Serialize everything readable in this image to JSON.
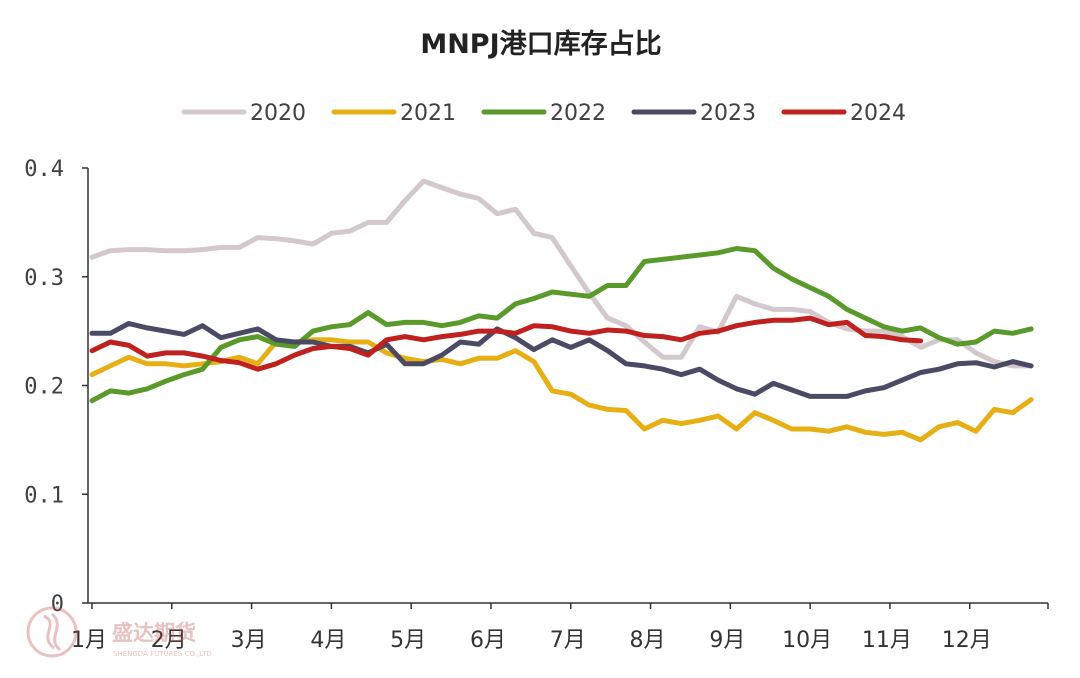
{
  "chart_data": {
    "type": "line",
    "title": "MNPJ港口库存占比",
    "xlabel": "",
    "ylabel": "",
    "ylim": [
      0,
      0.4
    ],
    "yticks": [
      "0",
      "0.1",
      "0.2",
      "0.3",
      "0.4"
    ],
    "x_month_labels": [
      "1月",
      "2月",
      "3月",
      "4月",
      "5月",
      "6月",
      "7月",
      "8月",
      "9月",
      "10月",
      "11月",
      "12月"
    ],
    "x_unit": "week of year (1-52)",
    "legend_position": "top",
    "grid": false,
    "series": [
      {
        "name": "2020",
        "color": "#d3c8cb",
        "x": [
          1,
          2,
          3,
          4,
          5,
          6,
          7,
          8,
          9,
          10,
          11,
          12,
          13,
          14,
          15,
          16,
          17,
          18,
          19,
          20,
          21,
          22,
          23,
          24,
          25,
          26,
          27,
          28,
          29,
          30,
          31,
          32,
          33,
          34,
          35,
          36,
          37,
          38,
          39,
          40,
          41,
          42,
          43,
          44,
          45,
          46,
          47,
          48,
          49,
          50,
          51,
          52
        ],
        "values": [
          0.318,
          0.324,
          0.325,
          0.325,
          0.324,
          0.324,
          0.325,
          0.327,
          0.327,
          0.336,
          0.335,
          0.333,
          0.33,
          0.34,
          0.342,
          0.35,
          0.35,
          0.37,
          0.388,
          0.382,
          0.376,
          0.372,
          0.358,
          0.362,
          0.34,
          0.336,
          0.31,
          0.285,
          0.262,
          0.255,
          0.24,
          0.226,
          0.226,
          0.254,
          0.249,
          0.282,
          0.275,
          0.27,
          0.27,
          0.268,
          0.258,
          0.252,
          0.25,
          0.25,
          0.245,
          0.235,
          0.242,
          0.242,
          0.23,
          0.222,
          0.218,
          0.218
        ]
      },
      {
        "name": "2021",
        "color": "#e6b015",
        "x": [
          1,
          2,
          3,
          4,
          5,
          6,
          7,
          8,
          9,
          10,
          11,
          12,
          13,
          14,
          15,
          16,
          17,
          18,
          19,
          20,
          21,
          22,
          23,
          24,
          25,
          26,
          27,
          28,
          29,
          30,
          31,
          32,
          33,
          34,
          35,
          36,
          37,
          38,
          39,
          40,
          41,
          42,
          43,
          44,
          45,
          46,
          47,
          48,
          49,
          50,
          51,
          52
        ],
        "values": [
          0.21,
          0.218,
          0.226,
          0.22,
          0.22,
          0.218,
          0.22,
          0.222,
          0.226,
          0.22,
          0.24,
          0.24,
          0.242,
          0.242,
          0.24,
          0.24,
          0.23,
          0.225,
          0.222,
          0.224,
          0.22,
          0.225,
          0.225,
          0.232,
          0.222,
          0.195,
          0.192,
          0.182,
          0.178,
          0.177,
          0.16,
          0.168,
          0.165,
          0.168,
          0.172,
          0.16,
          0.175,
          0.168,
          0.16,
          0.16,
          0.158,
          0.162,
          0.157,
          0.155,
          0.157,
          0.15,
          0.162,
          0.166,
          0.158,
          0.178,
          0.175,
          0.187
        ]
      },
      {
        "name": "2022",
        "color": "#5a9a2a",
        "x": [
          1,
          2,
          3,
          4,
          5,
          6,
          7,
          8,
          9,
          10,
          11,
          12,
          13,
          14,
          15,
          16,
          17,
          18,
          19,
          20,
          21,
          22,
          23,
          24,
          25,
          26,
          27,
          28,
          29,
          30,
          31,
          32,
          33,
          34,
          35,
          36,
          37,
          38,
          39,
          40,
          41,
          42,
          43,
          44,
          45,
          46,
          47,
          48,
          49,
          50,
          51,
          52
        ],
        "values": [
          0.186,
          0.195,
          0.193,
          0.197,
          0.204,
          0.21,
          0.215,
          0.235,
          0.242,
          0.245,
          0.238,
          0.236,
          0.25,
          0.254,
          0.256,
          0.267,
          0.256,
          0.258,
          0.258,
          0.255,
          0.258,
          0.264,
          0.262,
          0.275,
          0.28,
          0.286,
          0.284,
          0.282,
          0.292,
          0.292,
          0.314,
          0.316,
          0.318,
          0.32,
          0.322,
          0.326,
          0.324,
          0.308,
          0.298,
          0.29,
          0.282,
          0.27,
          0.262,
          0.254,
          0.25,
          0.253,
          0.244,
          0.238,
          0.24,
          0.25,
          0.248,
          0.252
        ]
      },
      {
        "name": "2023",
        "color": "#4b4a64",
        "x": [
          1,
          2,
          3,
          4,
          5,
          6,
          7,
          8,
          9,
          10,
          11,
          12,
          13,
          14,
          15,
          16,
          17,
          18,
          19,
          20,
          21,
          22,
          23,
          24,
          25,
          26,
          27,
          28,
          29,
          30,
          31,
          32,
          33,
          34,
          35,
          36,
          37,
          38,
          39,
          40,
          41,
          42,
          43,
          44,
          45,
          46,
          47,
          48,
          49,
          50,
          51,
          52
        ],
        "values": [
          0.248,
          0.248,
          0.257,
          0.253,
          0.25,
          0.247,
          0.255,
          0.244,
          0.248,
          0.252,
          0.242,
          0.24,
          0.24,
          0.236,
          0.236,
          0.23,
          0.238,
          0.22,
          0.22,
          0.228,
          0.24,
          0.238,
          0.252,
          0.244,
          0.233,
          0.242,
          0.235,
          0.242,
          0.232,
          0.22,
          0.218,
          0.215,
          0.21,
          0.215,
          0.205,
          0.197,
          0.192,
          0.202,
          0.196,
          0.19,
          0.19,
          0.19,
          0.195,
          0.198,
          0.205,
          0.212,
          0.215,
          0.22,
          0.221,
          0.217,
          0.222,
          0.218
        ]
      },
      {
        "name": "2024",
        "color": "#c0211f",
        "x": [
          1,
          2,
          3,
          4,
          5,
          6,
          7,
          8,
          9,
          10,
          11,
          12,
          13,
          14,
          15,
          16,
          17,
          18,
          19,
          20,
          21,
          22,
          23,
          24,
          25,
          26,
          27,
          28,
          29,
          30,
          31,
          32,
          33,
          34,
          35,
          36,
          37,
          38,
          39,
          40,
          41,
          42,
          43,
          44,
          45,
          46
        ],
        "values": [
          0.232,
          0.24,
          0.237,
          0.227,
          0.23,
          0.23,
          0.227,
          0.223,
          0.221,
          0.215,
          0.22,
          0.228,
          0.234,
          0.236,
          0.234,
          0.228,
          0.242,
          0.245,
          0.242,
          0.245,
          0.247,
          0.25,
          0.25,
          0.248,
          0.255,
          0.254,
          0.25,
          0.248,
          0.251,
          0.25,
          0.246,
          0.245,
          0.242,
          0.248,
          0.25,
          0.255,
          0.258,
          0.26,
          0.26,
          0.262,
          0.256,
          0.258,
          0.246,
          0.245,
          0.242,
          0.241
        ]
      }
    ]
  },
  "watermark": {
    "brand_cn": "盛达期货",
    "brand_en": "SHENGDA FUTURES CO.,LTD."
  }
}
